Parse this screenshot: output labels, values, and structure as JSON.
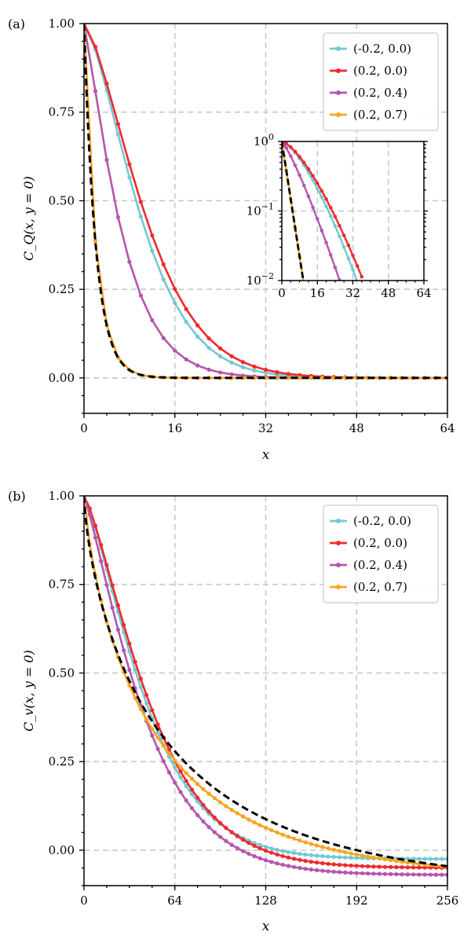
{
  "colors": {
    "cyan": "#73c8d2",
    "red": "#ee2a2e",
    "purple": "#b655ad",
    "orange": "#f6a623",
    "reference": "#000000"
  },
  "chart_data": [
    {
      "id": "a",
      "panel_label": "(a)",
      "type": "line",
      "xlabel": "x",
      "ylabel": "C_Q(x, y = 0)",
      "xlim": [
        0,
        64
      ],
      "ylim": [
        -0.1,
        1.0
      ],
      "xticks": [
        0,
        16,
        32,
        48,
        64
      ],
      "xtick_labels": [
        "0",
        "16",
        "32",
        "48",
        "64"
      ],
      "yticks": [
        0.0,
        0.25,
        0.5,
        0.75,
        1.0
      ],
      "ytick_labels": [
        "0.00",
        "0.25",
        "0.50",
        "0.75",
        "1.00"
      ],
      "grid": true,
      "legend_position": "top-right",
      "series": [
        {
          "name": "(-0.2,  0.0)",
          "color": "#73c8d2",
          "decay_length": 11.8,
          "shape": 1.45,
          "offset": 0
        },
        {
          "name": "(0.2,  0.0)",
          "color": "#ee2a2e",
          "decay_length": 12.8,
          "shape": 1.45,
          "offset": 0
        },
        {
          "name": "(0.2,  0.4)",
          "color": "#b655ad",
          "decay_length": 7.3,
          "shape": 1.2,
          "offset": 0
        },
        {
          "name": "(0.2,  0.7)",
          "color": "#f6a623",
          "decay_length": 2.1,
          "shape": 1.0,
          "offset": 0
        }
      ],
      "reference_curve": {
        "style": "dashed",
        "color": "#000000",
        "decay_length": 2.1,
        "shape": 1.0,
        "offset": 0
      },
      "inset": {
        "type": "line",
        "yscale": "log",
        "xlim": [
          0,
          64
        ],
        "ylim": [
          0.01,
          1.0
        ],
        "xticks": [
          0,
          16,
          32,
          48,
          64
        ],
        "xtick_labels": [
          "0",
          "16",
          "32",
          "48",
          "64"
        ],
        "ytick_labels": [
          {
            "base": "10",
            "exp": "0"
          },
          {
            "base": "10",
            "exp": "−1"
          },
          {
            "base": "10",
            "exp": "−2"
          }
        ],
        "grid": true
      }
    },
    {
      "id": "b",
      "panel_label": "(b)",
      "type": "line",
      "xlabel": "x",
      "ylabel": "C_v(x, y = 0)",
      "xlim": [
        0,
        256
      ],
      "ylim": [
        -0.1,
        1.0
      ],
      "xticks": [
        0,
        64,
        128,
        192,
        256
      ],
      "xtick_labels": [
        "0",
        "64",
        "128",
        "192",
        "256"
      ],
      "yticks": [
        0.0,
        0.25,
        0.5,
        0.75,
        1.0
      ],
      "ytick_labels": [
        "0.00",
        "0.25",
        "0.50",
        "0.75",
        "1.00"
      ],
      "grid": true,
      "legend_position": "top-right",
      "series": [
        {
          "name": "(-0.2,  0.0)",
          "color": "#73c8d2",
          "decay_length": 50,
          "shape": 1.3,
          "offset": -0.025
        },
        {
          "name": "(0.2,  0.0)",
          "color": "#ee2a2e",
          "decay_length": 54,
          "shape": 1.3,
          "offset": -0.05
        },
        {
          "name": "(0.2,  0.4)",
          "color": "#b655ad",
          "decay_length": 48,
          "shape": 1.2,
          "offset": -0.07
        },
        {
          "name": "(0.2,  0.7)",
          "color": "#f6a623",
          "decay_length": 52,
          "shape": 0.78,
          "offset": -0.08
        }
      ],
      "reference_curve": {
        "style": "dashed",
        "color": "#000000",
        "decay_length": 60,
        "shape": 0.72,
        "offset": -0.11
      }
    }
  ]
}
